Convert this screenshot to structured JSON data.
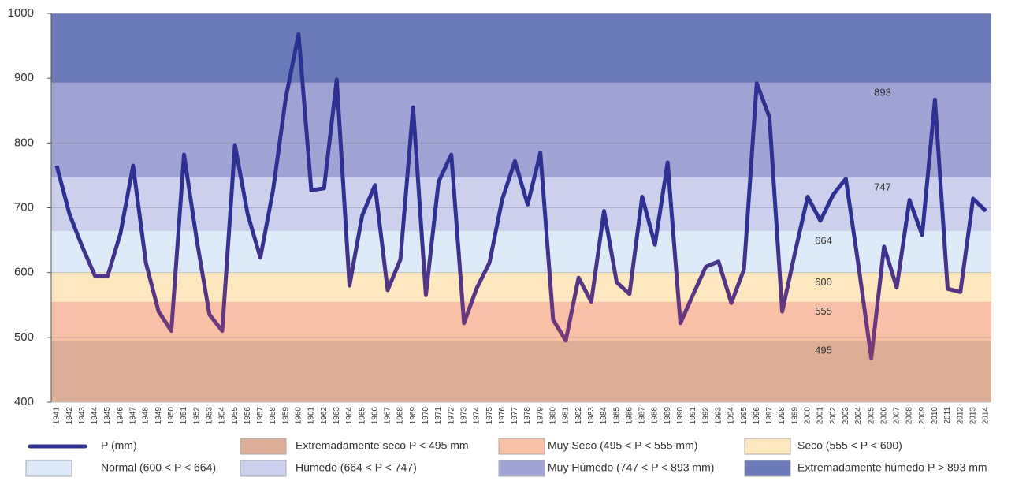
{
  "chart_data": {
    "type": "line",
    "categories": [
      "1941",
      "1942",
      "1943",
      "1944",
      "1945",
      "1946",
      "1947",
      "1948",
      "1949",
      "1950",
      "1951",
      "1952",
      "1953",
      "1954",
      "1955",
      "1956",
      "1957",
      "1958",
      "1959",
      "1960",
      "1961",
      "1962",
      "1963",
      "1964",
      "1965",
      "1966",
      "1967",
      "1968",
      "1969",
      "1970",
      "1971",
      "1972",
      "1973",
      "1974",
      "1975",
      "1976",
      "1977",
      "1978",
      "1979",
      "1980",
      "1981",
      "1982",
      "1983",
      "1984",
      "1985",
      "1986",
      "1987",
      "1988",
      "1989",
      "1990",
      "1991",
      "1992",
      "1993",
      "1994",
      "1995",
      "1996",
      "1997",
      "1998",
      "1999",
      "2000",
      "2001",
      "2002",
      "2003",
      "2004",
      "2005",
      "2006",
      "2007",
      "2008",
      "2009",
      "2010",
      "2011",
      "2012",
      "2013",
      "2014"
    ],
    "series": [
      {
        "name": "P (mm)",
        "color": "#2e3192",
        "values": [
          765,
          690,
          640,
          595,
          595,
          660,
          765,
          615,
          540,
          510,
          782,
          650,
          535,
          510,
          797,
          690,
          623,
          728,
          870,
          968,
          727,
          730,
          898,
          580,
          688,
          735,
          573,
          620,
          855,
          565,
          740,
          782,
          522,
          576,
          615,
          713,
          772,
          705,
          785,
          527,
          495,
          592,
          555,
          695,
          585,
          567,
          717,
          643,
          770,
          522,
          566,
          609,
          617,
          553,
          605,
          892,
          840,
          540,
          630,
          717,
          680,
          720,
          745,
          610,
          468,
          640,
          577,
          712,
          658,
          867,
          575,
          570,
          714,
          695
        ]
      }
    ],
    "thresholds": [
      495,
      555,
      600,
      664,
      747,
      893
    ],
    "bands": [
      {
        "name": "Extremadamente seco P < 495 mm",
        "color": "#dcae98"
      },
      {
        "name": "Muy Seco (495 < P < 555 mm)",
        "color": "#f8c0a6"
      },
      {
        "name": "Seco (555 < P < 600)",
        "color": "#fde7bf"
      },
      {
        "name": "Normal (600 < P < 664)",
        "color": "#ddeaf8"
      },
      {
        "name": "Húmedo (664 < P < 747)",
        "color": "#cdd0ec"
      },
      {
        "name": "Muy Húmedo (747 < P < 893  mm)",
        "color": "#a0a4d4"
      },
      {
        "name": "Extremadamente húmedo P > 893 mm",
        "color": "#6c7abb"
      }
    ],
    "ylim": [
      400,
      1000
    ],
    "yticks": [
      400,
      500,
      600,
      700,
      800,
      900,
      1000
    ],
    "grid": true
  }
}
